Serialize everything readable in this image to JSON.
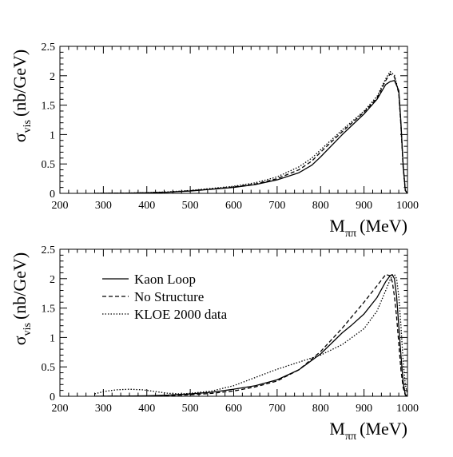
{
  "chart_data": [
    {
      "type": "line",
      "title": "",
      "xlabel": "M_ππ (MeV)",
      "xlabel_main": "M",
      "xlabel_sub": "ππ",
      "xlabel_unit": "(MeV)",
      "ylabel": "σ_vis (nb/GeV)",
      "ylabel_main": "σ",
      "ylabel_sub": "vis",
      "ylabel_unit": "(nb/GeV)",
      "xlim": [
        200,
        1000
      ],
      "ylim": [
        0,
        2.5
      ],
      "xticks": [
        "200",
        "300",
        "400",
        "500",
        "600",
        "700",
        "800",
        "900",
        "1000"
      ],
      "yticks": [
        "0",
        "0.5",
        "1",
        "1.5",
        "2",
        "2.5"
      ],
      "grid": false,
      "series": [
        {
          "style": "solid",
          "x": [
            280,
            350,
            400,
            450,
            500,
            550,
            600,
            650,
            700,
            750,
            780,
            800,
            850,
            900,
            930,
            950,
            960,
            970,
            980,
            985,
            990,
            995,
            1000
          ],
          "y": [
            0,
            0.003,
            0.01,
            0.02,
            0.04,
            0.07,
            0.1,
            0.15,
            0.23,
            0.35,
            0.48,
            0.62,
            1.0,
            1.35,
            1.6,
            1.85,
            1.9,
            1.92,
            1.75,
            1.2,
            0.5,
            0.05,
            0
          ]
        },
        {
          "style": "dashed",
          "x": [
            280,
            350,
            400,
            450,
            500,
            550,
            600,
            650,
            700,
            750,
            780,
            800,
            850,
            900,
            930,
            950,
            960,
            970,
            980,
            985,
            990,
            995,
            1000
          ],
          "y": [
            0,
            0.003,
            0.01,
            0.02,
            0.045,
            0.075,
            0.11,
            0.16,
            0.25,
            0.4,
            0.55,
            0.7,
            1.05,
            1.38,
            1.62,
            1.92,
            2.03,
            1.98,
            1.7,
            1.15,
            0.45,
            0.05,
            0
          ]
        },
        {
          "style": "dotted",
          "x": [
            280,
            350,
            400,
            450,
            500,
            550,
            600,
            650,
            700,
            750,
            780,
            800,
            850,
            900,
            930,
            950,
            960,
            970,
            980,
            985,
            990,
            995,
            1000
          ],
          "y": [
            0,
            0.004,
            0.012,
            0.025,
            0.05,
            0.085,
            0.12,
            0.18,
            0.28,
            0.45,
            0.6,
            0.74,
            1.08,
            1.4,
            1.65,
            1.95,
            2.07,
            2.01,
            1.72,
            1.15,
            0.45,
            0.05,
            0
          ]
        }
      ]
    },
    {
      "type": "line",
      "title": "",
      "xlabel": "M_ππ (MeV)",
      "xlabel_main": "M",
      "xlabel_sub": "ππ",
      "xlabel_unit": "(MeV)",
      "ylabel": "σ_vis (nb/GeV)",
      "ylabel_main": "σ",
      "ylabel_sub": "vis",
      "ylabel_unit": "(nb/GeV)",
      "xlim": [
        200,
        1000
      ],
      "ylim": [
        0,
        2.5
      ],
      "xticks": [
        "200",
        "300",
        "400",
        "500",
        "600",
        "700",
        "800",
        "900",
        "1000"
      ],
      "yticks": [
        "0",
        "0.5",
        "1",
        "1.5",
        "2",
        "2.5"
      ],
      "grid": false,
      "legend_placement": "top-left",
      "series": [
        {
          "name": "Kaon Loop",
          "style": "solid",
          "x": [
            280,
            350,
            400,
            450,
            500,
            550,
            600,
            650,
            700,
            750,
            800,
            850,
            870,
            900,
            930,
            950,
            960,
            965,
            970,
            975,
            980,
            985,
            990,
            995,
            1000
          ],
          "y": [
            0,
            0.003,
            0.008,
            0.02,
            0.04,
            0.07,
            0.12,
            0.18,
            0.28,
            0.45,
            0.72,
            1.08,
            1.2,
            1.4,
            1.68,
            1.95,
            2.05,
            2.07,
            2.0,
            1.7,
            1.2,
            0.7,
            0.25,
            0.03,
            0
          ]
        },
        {
          "name": "No Structure",
          "style": "dashed",
          "x": [
            280,
            350,
            400,
            450,
            500,
            550,
            600,
            650,
            700,
            750,
            800,
            850,
            900,
            930,
            950,
            960,
            965,
            970,
            975,
            980,
            985,
            990,
            995,
            1000
          ],
          "y": [
            0,
            0.002,
            0.005,
            0.012,
            0.025,
            0.05,
            0.09,
            0.16,
            0.26,
            0.45,
            0.76,
            1.16,
            1.6,
            1.88,
            2.07,
            2.05,
            1.95,
            1.7,
            1.35,
            0.9,
            0.45,
            0.15,
            0.02,
            0
          ]
        },
        {
          "name": "KLOE 2000 data",
          "style": "dotted",
          "x": [
            280,
            300,
            330,
            360,
            390,
            420,
            450,
            480,
            500,
            550,
            600,
            650,
            700,
            750,
            800,
            850,
            900,
            930,
            950,
            960,
            965,
            970,
            975,
            980,
            985,
            990,
            995,
            1000,
            1005
          ],
          "y": [
            0.04,
            0.08,
            0.11,
            0.12,
            0.11,
            0.08,
            0.05,
            0.04,
            0.05,
            0.09,
            0.18,
            0.32,
            0.46,
            0.58,
            0.7,
            0.88,
            1.15,
            1.45,
            1.8,
            1.98,
            2.05,
            2.07,
            2.0,
            1.7,
            1.2,
            0.6,
            0.2,
            0.03,
            0
          ]
        }
      ]
    }
  ]
}
